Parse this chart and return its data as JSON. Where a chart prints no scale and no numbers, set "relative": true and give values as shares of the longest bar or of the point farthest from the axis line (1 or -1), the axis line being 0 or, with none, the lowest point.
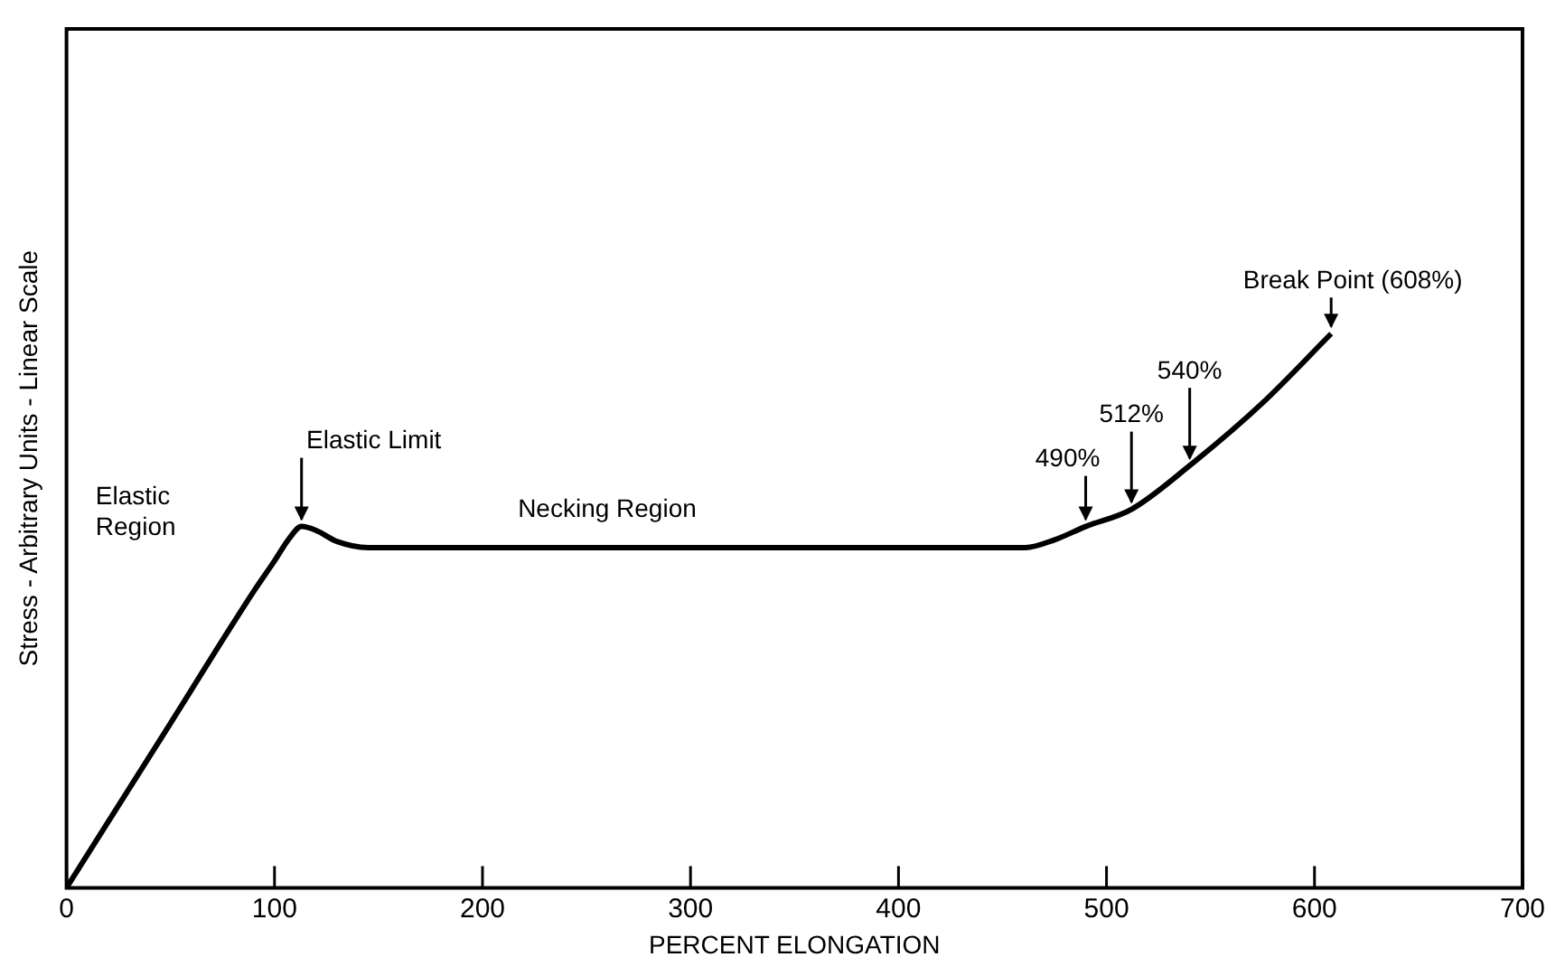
{
  "chart_data": {
    "type": "line",
    "relative": true,
    "xlabel": "PERCENT ELONGATION",
    "ylabel": "Stress - Arbitrary Units - Linear Scale",
    "x": [
      0,
      50,
      90,
      100,
      107,
      113,
      120,
      130,
      145,
      200,
      300,
      400,
      461,
      475,
      490,
      512,
      540,
      575,
      608
    ],
    "series": [
      {
        "color": "#000000",
        "values": [
          0,
          0.297,
          0.535,
          0.59,
          0.63,
          0.652,
          0.645,
          0.625,
          0.614,
          0.614,
          0.614,
          0.614,
          0.614,
          0.628,
          0.652,
          0.683,
          0.762,
          0.875,
          1
        ]
      }
    ],
    "xlim": [
      0,
      700
    ],
    "xticks": [
      0,
      100,
      200,
      300,
      400,
      500,
      600,
      700
    ],
    "grid": false,
    "legend": false,
    "marker": "none",
    "line_style": "solid",
    "tick_labels": "x",
    "annotations": [
      {
        "text": "Elastic Limit",
        "x": 113,
        "y": 0.652
      },
      {
        "text": "490%",
        "x": 490,
        "y": 0.652
      },
      {
        "text": "512%",
        "x": 512,
        "y": 0.683
      },
      {
        "text": "540%",
        "x": 540,
        "y": 0.762
      },
      {
        "text": "Break Point (608%)",
        "x": 608,
        "y": 1
      },
      "Elastic\nRegion",
      "Necking Region"
    ]
  }
}
